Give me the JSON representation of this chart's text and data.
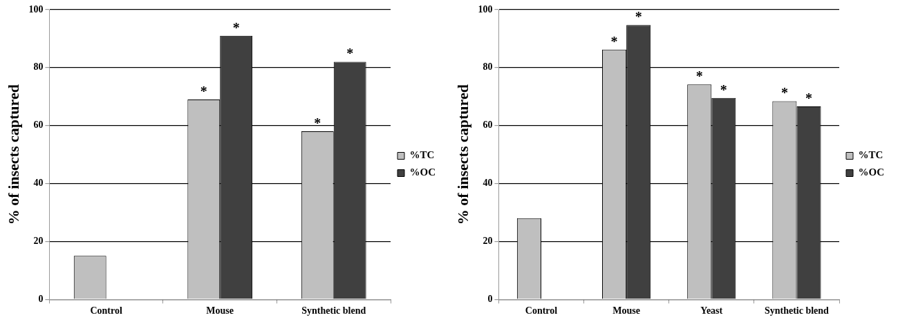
{
  "chart_data": [
    {
      "type": "bar",
      "ylabel": "% of insects captured",
      "categories": [
        "Control",
        "Mouse",
        "Synthetic blend"
      ],
      "series": [
        {
          "name": "%TC",
          "color": "#bfbfbf",
          "values": [
            15,
            69,
            58
          ]
        },
        {
          "name": "%OC",
          "color": "#404040",
          "values": [
            null,
            91,
            82
          ]
        }
      ],
      "ylim": [
        0,
        100
      ],
      "yticks": [
        0,
        20,
        40,
        60,
        80,
        100
      ],
      "grid": "y",
      "legend": "right",
      "annotations": [
        {
          "text": "*",
          "x": "Mouse",
          "y": 69
        },
        {
          "text": "*",
          "x": "Mouse",
          "y": 91
        },
        {
          "text": "*",
          "x": "Synthetic blend",
          "y": 58
        },
        {
          "text": "*",
          "x": "Synthetic blend",
          "y": 82
        }
      ]
    },
    {
      "type": "bar",
      "ylabel": "% of insects captured",
      "categories": [
        "Control",
        "Mouse",
        "Yeast",
        "Synthetic blend"
      ],
      "series": [
        {
          "name": "%TC",
          "color": "#bfbfbf",
          "values": [
            28,
            86.2,
            74.2,
            68.4
          ]
        },
        {
          "name": "%OC",
          "color": "#404040",
          "values": [
            null,
            94.7,
            69.5,
            66.6
          ]
        }
      ],
      "ylim": [
        0,
        100
      ],
      "yticks": [
        0,
        20,
        40,
        60,
        80,
        100
      ],
      "grid": "y",
      "legend": "right",
      "annotations": [
        {
          "text": "*",
          "x": "Mouse",
          "y": 86.2
        },
        {
          "text": "*",
          "x": "Mouse",
          "y": 94.7
        },
        {
          "text": "*",
          "x": "Yeast",
          "y": 74.2
        },
        {
          "text": "*",
          "x": "Yeast",
          "y": 69.5
        },
        {
          "text": "*",
          "x": "Synthetic blend",
          "y": 68.4
        },
        {
          "text": "*",
          "x": "Synthetic blend",
          "y": 66.6
        }
      ]
    }
  ]
}
